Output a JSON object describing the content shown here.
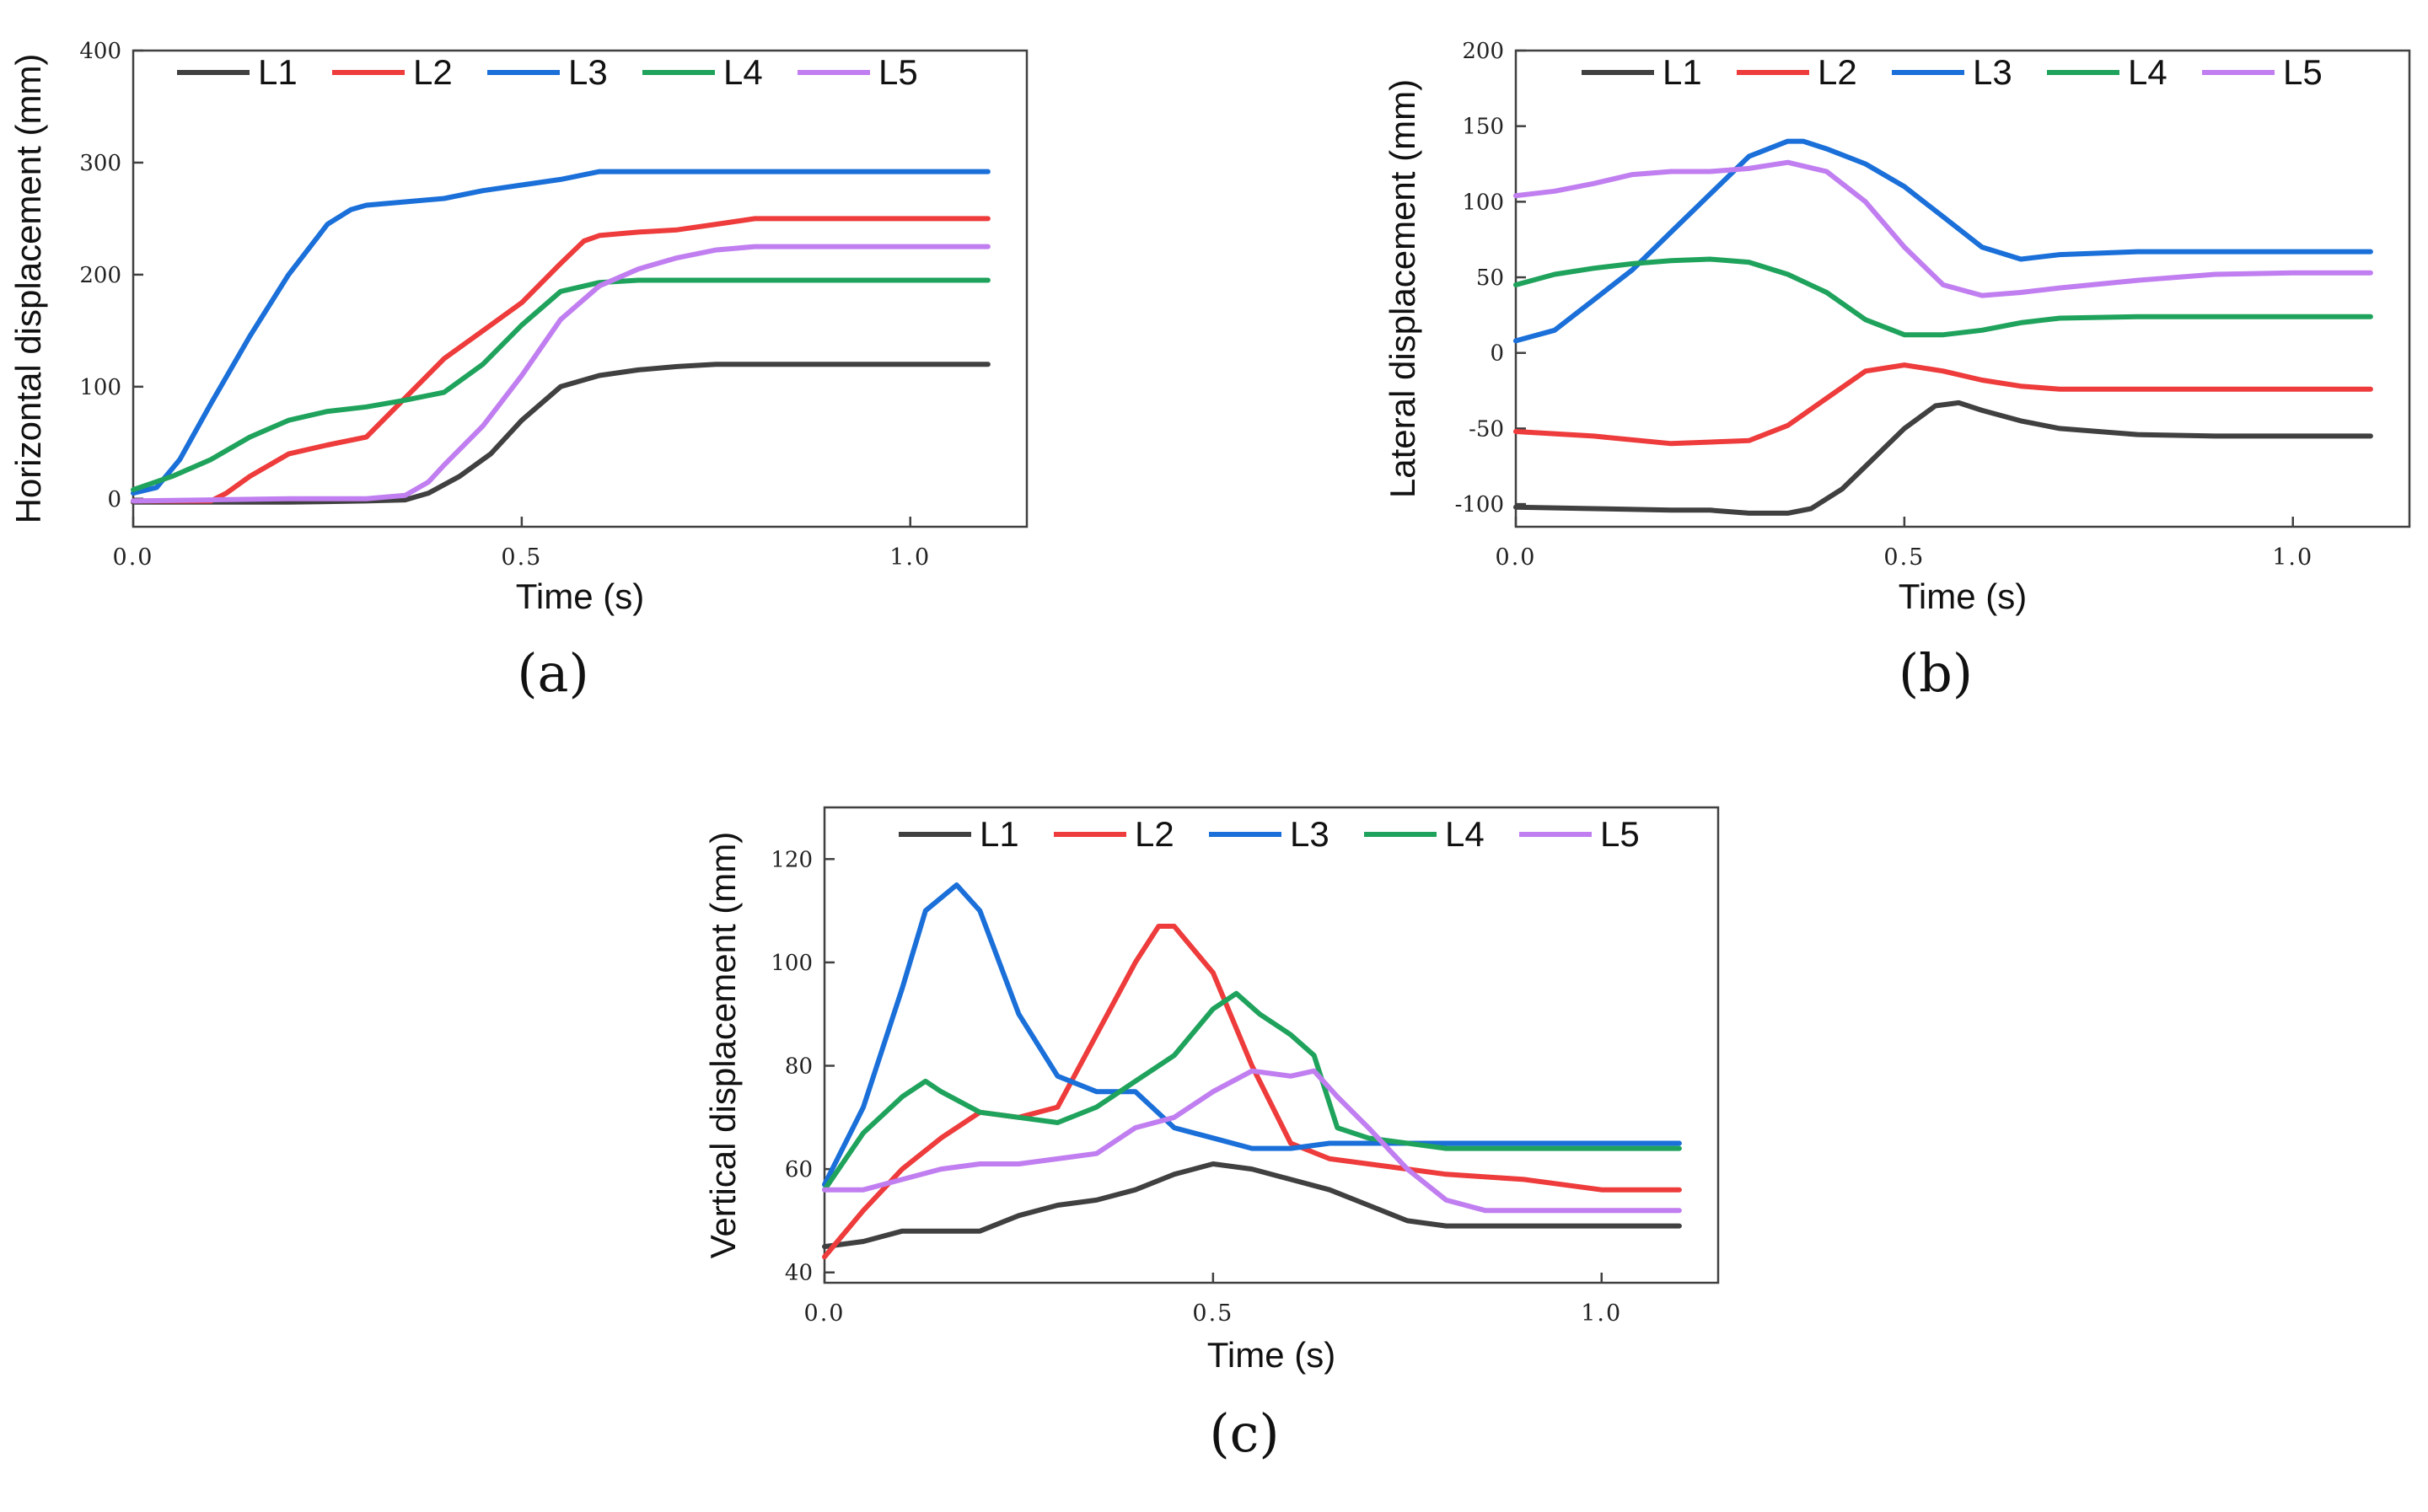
{
  "colors": {
    "L1": "#404040",
    "L2": "#ee3b3b",
    "L3": "#1a6fd9",
    "L4": "#1fa35c",
    "L5": "#c07ef0"
  },
  "chart_data": [
    {
      "type": "line",
      "panel_label": "(a)",
      "xlabel": "Time (s)",
      "ylabel": "Horizontal displacement (mm)",
      "xlim": [
        0,
        1.15
      ],
      "ylim": [
        -25,
        400
      ],
      "xticks": [
        0.0,
        0.5,
        1.0
      ],
      "xtick_labels": [
        "0.0",
        "0.5",
        "1.0"
      ],
      "yticks": [
        0,
        100,
        200,
        300,
        400
      ],
      "ytick_labels": [
        "0",
        "100",
        "200",
        "300",
        "400"
      ],
      "legend": [
        "L1",
        "L2",
        "L3",
        "L4",
        "L5"
      ],
      "series": [
        {
          "name": "L1",
          "x": [
            0,
            0.1,
            0.2,
            0.3,
            0.35,
            0.38,
            0.42,
            0.46,
            0.5,
            0.55,
            0.6,
            0.65,
            0.7,
            0.75,
            0.8,
            0.9,
            1.0,
            1.1
          ],
          "y": [
            -3,
            -3,
            -3,
            -2,
            -1,
            5,
            20,
            40,
            70,
            100,
            110,
            115,
            118,
            120,
            120,
            120,
            120,
            120
          ]
        },
        {
          "name": "L2",
          "x": [
            0,
            0.05,
            0.1,
            0.12,
            0.15,
            0.2,
            0.25,
            0.3,
            0.35,
            0.4,
            0.45,
            0.5,
            0.55,
            0.58,
            0.6,
            0.65,
            0.7,
            0.75,
            0.8,
            0.9,
            1.0,
            1.1
          ],
          "y": [
            -2,
            -2,
            -2,
            5,
            20,
            40,
            48,
            55,
            90,
            125,
            150,
            175,
            210,
            230,
            235,
            238,
            240,
            245,
            250,
            250,
            250,
            250
          ]
        },
        {
          "name": "L3",
          "x": [
            0,
            0.03,
            0.06,
            0.1,
            0.15,
            0.2,
            0.25,
            0.28,
            0.3,
            0.35,
            0.4,
            0.45,
            0.5,
            0.55,
            0.6,
            0.65,
            0.7,
            0.8,
            0.9,
            1.0,
            1.1
          ],
          "y": [
            5,
            10,
            35,
            85,
            145,
            200,
            245,
            258,
            262,
            265,
            268,
            275,
            280,
            285,
            292,
            292,
            292,
            292,
            292,
            292,
            292
          ]
        },
        {
          "name": "L4",
          "x": [
            0,
            0.05,
            0.1,
            0.15,
            0.2,
            0.25,
            0.3,
            0.35,
            0.4,
            0.45,
            0.5,
            0.55,
            0.6,
            0.65,
            0.7,
            0.8,
            0.9,
            1.0,
            1.1
          ],
          "y": [
            8,
            20,
            35,
            55,
            70,
            78,
            82,
            88,
            95,
            120,
            155,
            185,
            193,
            195,
            195,
            195,
            195,
            195,
            195
          ]
        },
        {
          "name": "L5",
          "x": [
            0,
            0.1,
            0.2,
            0.3,
            0.35,
            0.38,
            0.4,
            0.45,
            0.5,
            0.55,
            0.6,
            0.65,
            0.7,
            0.75,
            0.8,
            0.9,
            1.0,
            1.1
          ],
          "y": [
            -2,
            -1,
            0,
            0,
            3,
            15,
            30,
            65,
            110,
            160,
            190,
            205,
            215,
            222,
            225,
            225,
            225,
            225
          ]
        }
      ]
    },
    {
      "type": "line",
      "panel_label": "(b)",
      "xlabel": "Time (s)",
      "ylabel": "Lateral displacement (mm)",
      "xlim": [
        0,
        1.15
      ],
      "ylim": [
        -115,
        200
      ],
      "xticks": [
        0.0,
        0.5,
        1.0
      ],
      "xtick_labels": [
        "0.0",
        "0.5",
        "1.0"
      ],
      "yticks": [
        -100,
        -50,
        0,
        50,
        100,
        150,
        200
      ],
      "ytick_labels": [
        "-100",
        "-50",
        "0",
        "50",
        "100",
        "150",
        "200"
      ],
      "legend": [
        "L1",
        "L2",
        "L3",
        "L4",
        "L5"
      ],
      "series": [
        {
          "name": "L1",
          "x": [
            0,
            0.1,
            0.2,
            0.25,
            0.3,
            0.35,
            0.38,
            0.42,
            0.46,
            0.5,
            0.54,
            0.57,
            0.6,
            0.65,
            0.7,
            0.8,
            0.9,
            1.0,
            1.1
          ],
          "y": [
            -102,
            -103,
            -104,
            -104,
            -106,
            -106,
            -103,
            -90,
            -70,
            -50,
            -35,
            -33,
            -38,
            -45,
            -50,
            -54,
            -55,
            -55,
            -55
          ]
        },
        {
          "name": "L2",
          "x": [
            0,
            0.1,
            0.2,
            0.3,
            0.35,
            0.4,
            0.45,
            0.5,
            0.55,
            0.6,
            0.65,
            0.7,
            0.8,
            0.9,
            1.0,
            1.1
          ],
          "y": [
            -52,
            -55,
            -60,
            -58,
            -48,
            -30,
            -12,
            -8,
            -12,
            -18,
            -22,
            -24,
            -24,
            -24,
            -24,
            -24
          ]
        },
        {
          "name": "L3",
          "x": [
            0,
            0.05,
            0.1,
            0.15,
            0.2,
            0.25,
            0.3,
            0.35,
            0.37,
            0.4,
            0.45,
            0.5,
            0.55,
            0.6,
            0.65,
            0.7,
            0.8,
            0.9,
            1.0,
            1.1
          ],
          "y": [
            8,
            15,
            35,
            55,
            80,
            105,
            130,
            140,
            140,
            135,
            125,
            110,
            90,
            70,
            62,
            65,
            67,
            67,
            67,
            67
          ]
        },
        {
          "name": "L4",
          "x": [
            0,
            0.05,
            0.1,
            0.15,
            0.2,
            0.25,
            0.3,
            0.35,
            0.4,
            0.45,
            0.5,
            0.55,
            0.6,
            0.65,
            0.7,
            0.8,
            0.9,
            1.0,
            1.1
          ],
          "y": [
            45,
            52,
            56,
            59,
            61,
            62,
            60,
            52,
            40,
            22,
            12,
            12,
            15,
            20,
            23,
            24,
            24,
            24,
            24
          ]
        },
        {
          "name": "L5",
          "x": [
            0,
            0.05,
            0.1,
            0.15,
            0.2,
            0.25,
            0.3,
            0.35,
            0.4,
            0.45,
            0.5,
            0.55,
            0.6,
            0.65,
            0.7,
            0.8,
            0.9,
            1.0,
            1.1
          ],
          "y": [
            104,
            107,
            112,
            118,
            120,
            120,
            122,
            126,
            120,
            100,
            70,
            45,
            38,
            40,
            43,
            48,
            52,
            53,
            53
          ]
        }
      ]
    },
    {
      "type": "line",
      "panel_label": "(c)",
      "xlabel": "Time (s)",
      "ylabel": "Vertical displacement (mm)",
      "xlim": [
        0,
        1.15
      ],
      "ylim": [
        38,
        130
      ],
      "xticks": [
        0.0,
        0.5,
        1.0
      ],
      "xtick_labels": [
        "0.0",
        "0.5",
        "1.0"
      ],
      "yticks": [
        40,
        60,
        80,
        100,
        120
      ],
      "ytick_labels": [
        "40",
        "60",
        "80",
        "100",
        "120"
      ],
      "legend": [
        "L1",
        "L2",
        "L3",
        "L4",
        "L5"
      ],
      "series": [
        {
          "name": "L1",
          "x": [
            0,
            0.05,
            0.1,
            0.15,
            0.2,
            0.25,
            0.3,
            0.35,
            0.4,
            0.45,
            0.5,
            0.55,
            0.6,
            0.65,
            0.7,
            0.75,
            0.8,
            0.9,
            1.0,
            1.1
          ],
          "y": [
            45,
            46,
            48,
            48,
            48,
            51,
            53,
            54,
            56,
            59,
            61,
            60,
            58,
            56,
            53,
            50,
            49,
            49,
            49,
            49
          ]
        },
        {
          "name": "L2",
          "x": [
            0,
            0.05,
            0.1,
            0.15,
            0.2,
            0.25,
            0.3,
            0.35,
            0.4,
            0.43,
            0.45,
            0.5,
            0.55,
            0.6,
            0.65,
            0.7,
            0.75,
            0.8,
            0.9,
            1.0,
            1.1
          ],
          "y": [
            43,
            52,
            60,
            66,
            71,
            70,
            72,
            86,
            100,
            107,
            107,
            98,
            80,
            65,
            62,
            61,
            60,
            59,
            58,
            56,
            56
          ]
        },
        {
          "name": "L3",
          "x": [
            0,
            0.05,
            0.1,
            0.13,
            0.17,
            0.2,
            0.25,
            0.3,
            0.35,
            0.4,
            0.45,
            0.5,
            0.55,
            0.6,
            0.65,
            0.7,
            0.8,
            0.9,
            1.0,
            1.1
          ],
          "y": [
            57,
            72,
            95,
            110,
            115,
            110,
            90,
            78,
            75,
            75,
            68,
            66,
            64,
            64,
            65,
            65,
            65,
            65,
            65,
            65
          ]
        },
        {
          "name": "L4",
          "x": [
            0,
            0.05,
            0.1,
            0.13,
            0.15,
            0.2,
            0.25,
            0.3,
            0.35,
            0.4,
            0.45,
            0.5,
            0.53,
            0.56,
            0.6,
            0.63,
            0.66,
            0.7,
            0.8,
            0.9,
            1.0,
            1.1
          ],
          "y": [
            56,
            67,
            74,
            77,
            75,
            71,
            70,
            69,
            72,
            77,
            82,
            91,
            94,
            90,
            86,
            82,
            68,
            66,
            64,
            64,
            64,
            64
          ]
        },
        {
          "name": "L5",
          "x": [
            0,
            0.05,
            0.1,
            0.15,
            0.2,
            0.25,
            0.3,
            0.35,
            0.4,
            0.45,
            0.5,
            0.55,
            0.6,
            0.63,
            0.66,
            0.7,
            0.75,
            0.8,
            0.85,
            0.9,
            1.0,
            1.1
          ],
          "y": [
            56,
            56,
            58,
            60,
            61,
            61,
            62,
            63,
            68,
            70,
            75,
            79,
            78,
            79,
            74,
            68,
            60,
            54,
            52,
            52,
            52,
            52
          ]
        }
      ]
    }
  ]
}
